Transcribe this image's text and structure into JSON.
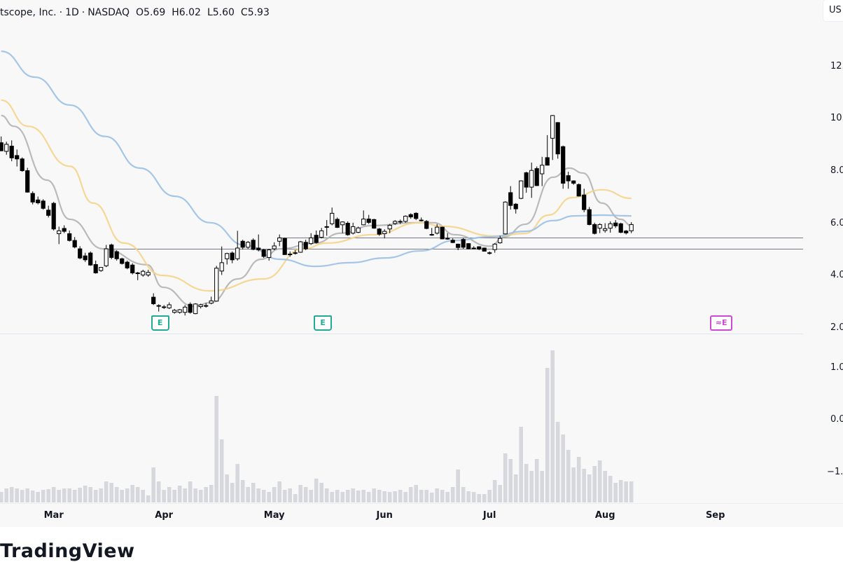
{
  "header": {
    "symbol_name": "tscope, Inc.",
    "interval": "1D",
    "exchange": "NASDAQ",
    "open": "O5.69",
    "high": "H6.02",
    "low": "L5.60",
    "close": "C5.93",
    "separator": "·"
  },
  "currency_button": "US",
  "logo": "TradingView",
  "colors": {
    "background": "#f8f8f8",
    "up_body": "#ffffff",
    "down_body": "#000000",
    "ma_fast": "#b2b2b2",
    "ma_mid": "#f5d48a",
    "ma_slow": "#9cc0e6",
    "volume": "#d6d8de",
    "hline": "#787b86",
    "earnings_past": "#22ab94",
    "earnings_future": "#cc4ad1"
  },
  "earnings_markers": [
    {
      "label": "E",
      "candle": 30,
      "kind": "past"
    },
    {
      "label": "E",
      "candle": 61,
      "kind": "past"
    },
    {
      "label": "≈E",
      "candle": 137,
      "kind": "future"
    }
  ],
  "chart_data": {
    "type": "candlestick",
    "title": "tscope, Inc. · 1D · NASDAQ",
    "price_axis_ticks": [
      "12.",
      "10.",
      "8.0",
      "6.0",
      "4.0",
      "2.0"
    ],
    "price_tick_values": [
      12,
      10,
      8,
      6,
      4,
      2
    ],
    "volume_axis_ticks": [
      "1.0",
      "0.0",
      "−1."
    ],
    "time_axis_labels": [
      {
        "label": "Mar",
        "candle": 10
      },
      {
        "label": "Apr",
        "candle": 31
      },
      {
        "label": "May",
        "candle": 52
      },
      {
        "label": "Jun",
        "candle": 73
      },
      {
        "label": "Jul",
        "candle": 93
      },
      {
        "label": "Aug",
        "candle": 115
      },
      {
        "label": "Sep",
        "candle": 136
      }
    ],
    "ylim": [
      2,
      13
    ],
    "horizontal_lines": [
      {
        "price": 5.0,
        "from_candle": 20
      },
      {
        "price": 5.43,
        "from_candle": 53
      }
    ],
    "candles": [
      [
        9.06,
        9.3,
        8.8,
        8.75
      ],
      [
        8.73,
        9.1,
        8.6,
        9.0
      ],
      [
        8.93,
        9.15,
        8.35,
        8.48
      ],
      [
        8.57,
        8.8,
        8.15,
        8.44
      ],
      [
        8.44,
        8.5,
        7.95,
        7.99
      ],
      [
        7.99,
        8.1,
        7.15,
        7.17
      ],
      [
        7.12,
        7.2,
        6.7,
        6.79
      ],
      [
        6.87,
        7.0,
        6.7,
        6.76
      ],
      [
        6.83,
        6.9,
        6.5,
        6.55
      ],
      [
        6.48,
        6.65,
        6.2,
        6.28
      ],
      [
        6.74,
        6.8,
        5.7,
        5.76
      ],
      [
        5.58,
        5.85,
        5.18,
        5.69
      ],
      [
        5.78,
        5.9,
        5.6,
        5.67
      ],
      [
        5.58,
        5.7,
        5.28,
        5.32
      ],
      [
        5.32,
        5.45,
        5.02,
        5.07
      ],
      [
        5.0,
        5.1,
        4.6,
        4.65
      ],
      [
        4.73,
        4.85,
        4.5,
        4.58
      ],
      [
        4.84,
        4.9,
        4.35,
        4.38
      ],
      [
        4.4,
        4.55,
        4.05,
        4.08
      ],
      [
        4.17,
        4.3,
        4.12,
        4.29
      ],
      [
        4.35,
        5.15,
        4.3,
        5.0
      ],
      [
        5.15,
        5.2,
        4.6,
        4.67
      ],
      [
        4.89,
        4.95,
        4.55,
        4.62
      ],
      [
        4.62,
        4.66,
        4.4,
        4.44
      ],
      [
        4.49,
        4.55,
        4.22,
        4.27
      ],
      [
        4.38,
        4.45,
        4.02,
        4.08
      ],
      [
        4.08,
        4.12,
        3.8,
        4.05
      ],
      [
        4.0,
        4.2,
        3.93,
        4.14
      ],
      [
        4.0,
        4.2,
        3.93,
        4.1
      ],
      [
        3.15,
        3.3,
        2.85,
        2.9
      ],
      [
        2.83,
        2.88,
        2.6,
        2.83
      ],
      [
        2.78,
        2.85,
        2.7,
        2.78
      ],
      [
        2.74,
        2.95,
        2.7,
        2.86
      ],
      [
        2.57,
        2.7,
        2.52,
        2.65
      ],
      [
        2.57,
        2.7,
        2.52,
        2.67
      ],
      [
        2.57,
        2.85,
        2.45,
        2.77
      ],
      [
        2.88,
        2.95,
        2.52,
        2.57
      ],
      [
        2.52,
        2.92,
        2.5,
        2.89
      ],
      [
        2.79,
        2.9,
        2.72,
        2.86
      ],
      [
        2.83,
        2.93,
        2.75,
        2.83
      ],
      [
        2.92,
        3.17,
        2.88,
        3.01
      ],
      [
        3.0,
        4.35,
        2.98,
        4.26
      ],
      [
        4.15,
        5.09,
        4.0,
        4.47
      ],
      [
        4.62,
        4.85,
        4.4,
        4.82
      ],
      [
        4.84,
        4.9,
        4.45,
        4.58
      ],
      [
        4.62,
        5.69,
        4.55,
        5.03
      ],
      [
        5.29,
        5.35,
        4.98,
        5.06
      ],
      [
        5.06,
        5.3,
        5.0,
        5.25
      ],
      [
        5.33,
        5.4,
        4.95,
        4.98
      ],
      [
        5.03,
        5.55,
        4.9,
        4.96
      ],
      [
        4.96,
        5.0,
        4.65,
        4.71
      ],
      [
        4.67,
        5.0,
        4.55,
        4.96
      ],
      [
        5.0,
        5.25,
        4.95,
        5.11
      ],
      [
        5.29,
        5.55,
        5.1,
        5.42
      ],
      [
        5.4,
        5.42,
        4.78,
        4.78
      ],
      [
        4.8,
        4.9,
        4.7,
        4.8
      ],
      [
        4.85,
        4.95,
        4.78,
        4.85
      ],
      [
        4.87,
        5.3,
        4.85,
        5.27
      ],
      [
        5.25,
        5.35,
        4.95,
        5.0
      ],
      [
        5.2,
        5.6,
        5.15,
        5.42
      ],
      [
        5.52,
        5.7,
        5.2,
        5.24
      ],
      [
        5.44,
        5.8,
        5.4,
        5.69
      ],
      [
        5.85,
        6.1,
        5.5,
        5.85
      ],
      [
        5.96,
        6.58,
        5.9,
        6.36
      ],
      [
        6.13,
        6.2,
        5.8,
        5.82
      ],
      [
        5.92,
        6.05,
        5.6,
        6.03
      ],
      [
        5.98,
        6.05,
        5.5,
        5.54
      ],
      [
        5.6,
        6.0,
        5.55,
        5.85
      ],
      [
        5.63,
        5.85,
        5.6,
        5.8
      ],
      [
        5.92,
        6.47,
        5.9,
        6.14
      ],
      [
        6.14,
        6.3,
        5.95,
        6.01
      ],
      [
        6.12,
        6.15,
        5.77,
        5.79
      ],
      [
        5.76,
        5.8,
        5.5,
        5.56
      ],
      [
        5.58,
        5.75,
        5.4,
        5.67
      ],
      [
        5.76,
        5.95,
        5.6,
        5.9
      ],
      [
        5.97,
        6.1,
        5.92,
        6.05
      ],
      [
        6.05,
        6.12,
        5.95,
        6.05
      ],
      [
        6.05,
        6.28,
        6.0,
        6.25
      ],
      [
        6.31,
        6.36,
        6.15,
        6.22
      ],
      [
        6.36,
        6.4,
        6.1,
        6.16
      ],
      [
        6.1,
        6.2,
        6.05,
        6.1
      ],
      [
        6.05,
        6.1,
        5.75,
        5.78
      ],
      [
        5.55,
        5.8,
        5.5,
        5.55
      ],
      [
        5.6,
        5.95,
        5.55,
        5.83
      ],
      [
        5.83,
        5.85,
        5.38,
        5.38
      ],
      [
        5.4,
        5.6,
        5.35,
        5.4
      ],
      [
        5.33,
        5.4,
        5.22,
        5.24
      ],
      [
        5.18,
        5.2,
        4.95,
        5.05
      ],
      [
        5.36,
        5.42,
        5.0,
        5.06
      ],
      [
        5.2,
        5.22,
        4.98,
        5.0
      ],
      [
        5.03,
        5.1,
        4.98,
        5.03
      ],
      [
        5.08,
        5.1,
        4.95,
        4.99
      ],
      [
        5.03,
        5.05,
        4.9,
        4.91
      ],
      [
        4.85,
        4.9,
        4.78,
        4.85
      ],
      [
        4.97,
        5.22,
        4.85,
        5.18
      ],
      [
        5.23,
        5.5,
        5.2,
        5.4
      ],
      [
        5.57,
        6.82,
        5.55,
        6.79
      ],
      [
        7.15,
        7.4,
        6.5,
        6.66
      ],
      [
        6.71,
        6.75,
        6.35,
        6.53
      ],
      [
        6.93,
        7.62,
        6.9,
        7.6
      ],
      [
        7.91,
        7.95,
        7.15,
        7.36
      ],
      [
        7.36,
        8.3,
        6.95,
        8.0
      ],
      [
        8.07,
        8.15,
        7.4,
        7.42
      ],
      [
        7.87,
        8.52,
        7.4,
        8.2
      ],
      [
        8.49,
        9.35,
        8.2,
        8.2
      ],
      [
        9.23,
        10.12,
        8.4,
        10.1
      ],
      [
        9.83,
        9.85,
        8.45,
        8.63
      ],
      [
        8.91,
        8.95,
        7.3,
        7.51
      ],
      [
        7.8,
        7.95,
        7.3,
        7.6
      ],
      [
        7.6,
        7.62,
        7.45,
        7.51
      ],
      [
        7.46,
        7.5,
        7.0,
        7.02
      ],
      [
        7.06,
        7.3,
        6.4,
        6.5
      ],
      [
        6.5,
        6.6,
        5.9,
        5.93
      ],
      [
        5.93,
        6.0,
        5.55,
        5.59
      ],
      [
        5.79,
        5.98,
        5.6,
        5.93
      ],
      [
        5.7,
        5.98,
        5.62,
        5.77
      ],
      [
        5.79,
        6.05,
        5.62,
        5.96
      ],
      [
        5.99,
        6.1,
        5.8,
        5.88
      ],
      [
        5.96,
        6.0,
        5.6,
        5.63
      ],
      [
        5.68,
        5.72,
        5.55,
        5.61
      ],
      [
        5.69,
        6.02,
        5.6,
        5.93
      ]
    ],
    "volume": [
      15,
      20,
      22,
      20,
      18,
      20,
      17,
      15,
      18,
      19,
      22,
      18,
      20,
      20,
      18,
      21,
      24,
      22,
      18,
      20,
      30,
      28,
      22,
      18,
      20,
      25,
      22,
      18,
      10,
      50,
      30,
      18,
      22,
      18,
      24,
      20,
      30,
      20,
      18,
      22,
      25,
      152,
      90,
      40,
      28,
      55,
      32,
      22,
      28,
      20,
      18,
      15,
      22,
      30,
      18,
      20,
      12,
      25,
      22,
      18,
      34,
      28,
      20,
      15,
      18,
      15,
      18,
      20,
      17,
      18,
      15,
      20,
      18,
      16,
      15,
      16,
      18,
      15,
      22,
      25,
      18,
      18,
      14,
      20,
      18,
      15,
      22,
      47,
      22,
      16,
      15,
      12,
      12,
      18,
      32,
      25,
      70,
      62,
      40,
      108,
      55,
      45,
      62,
      45,
      192,
      217,
      115,
      97,
      75,
      50,
      65,
      48,
      40,
      52,
      60,
      45,
      38,
      28,
      32,
      30,
      30
    ],
    "moving_averages": [
      {
        "name": "fast",
        "points": [
          [
            0,
            10.1
          ],
          [
            2.4,
            9.69
          ],
          [
            8.7,
            7.63
          ],
          [
            13.1,
            6.13
          ],
          [
            19.4,
            5.0
          ],
          [
            27.8,
            4.39
          ],
          [
            30.8,
            3.53
          ],
          [
            36.7,
            2.8
          ],
          [
            39.8,
            2.94
          ],
          [
            45.1,
            3.85
          ],
          [
            49.5,
            4.6
          ],
          [
            53.1,
            5.0
          ],
          [
            59.8,
            5.22
          ],
          [
            64.7,
            5.6
          ],
          [
            70.8,
            5.89
          ],
          [
            78.8,
            6.0
          ],
          [
            82.4,
            6.0
          ],
          [
            86.4,
            5.54
          ],
          [
            93.1,
            5.1
          ],
          [
            95.8,
            5.46
          ],
          [
            99.8,
            5.94
          ],
          [
            105.1,
            7.74
          ],
          [
            108.2,
            8.09
          ],
          [
            110.8,
            7.9
          ],
          [
            114.4,
            6.75
          ],
          [
            118.0,
            6.13
          ],
          [
            120,
            5.89
          ]
        ]
      },
      {
        "name": "mid",
        "points": [
          [
            0,
            10.69
          ],
          [
            5.1,
            9.69
          ],
          [
            13.1,
            8.16
          ],
          [
            17.5,
            6.75
          ],
          [
            23.4,
            5.22
          ],
          [
            30.8,
            3.98
          ],
          [
            39.8,
            3.39
          ],
          [
            50.0,
            3.85
          ],
          [
            57.5,
            5.0
          ],
          [
            62.0,
            5.22
          ],
          [
            70.8,
            5.54
          ],
          [
            79.8,
            6.0
          ],
          [
            84.2,
            5.86
          ],
          [
            94.0,
            5.49
          ],
          [
            99.8,
            5.59
          ],
          [
            104.2,
            6.29
          ],
          [
            108.7,
            6.96
          ],
          [
            114.4,
            7.26
          ],
          [
            120,
            6.93
          ]
        ]
      },
      {
        "name": "slow",
        "points": [
          [
            0,
            12.56
          ],
          [
            6.4,
            11.57
          ],
          [
            13.1,
            10.5
          ],
          [
            19.8,
            9.3
          ],
          [
            26.4,
            8.09
          ],
          [
            33.1,
            7.01
          ],
          [
            39.8,
            6.0
          ],
          [
            46.4,
            5.14
          ],
          [
            53.1,
            4.6
          ],
          [
            59.8,
            4.33
          ],
          [
            66.4,
            4.47
          ],
          [
            73.1,
            4.65
          ],
          [
            79.8,
            4.92
          ],
          [
            86.4,
            5.32
          ],
          [
            93.1,
            5.46
          ],
          [
            99.8,
            5.67
          ],
          [
            105.1,
            6.08
          ],
          [
            109.1,
            6.26
          ],
          [
            114.4,
            6.29
          ],
          [
            120,
            6.26
          ]
        ]
      }
    ]
  }
}
